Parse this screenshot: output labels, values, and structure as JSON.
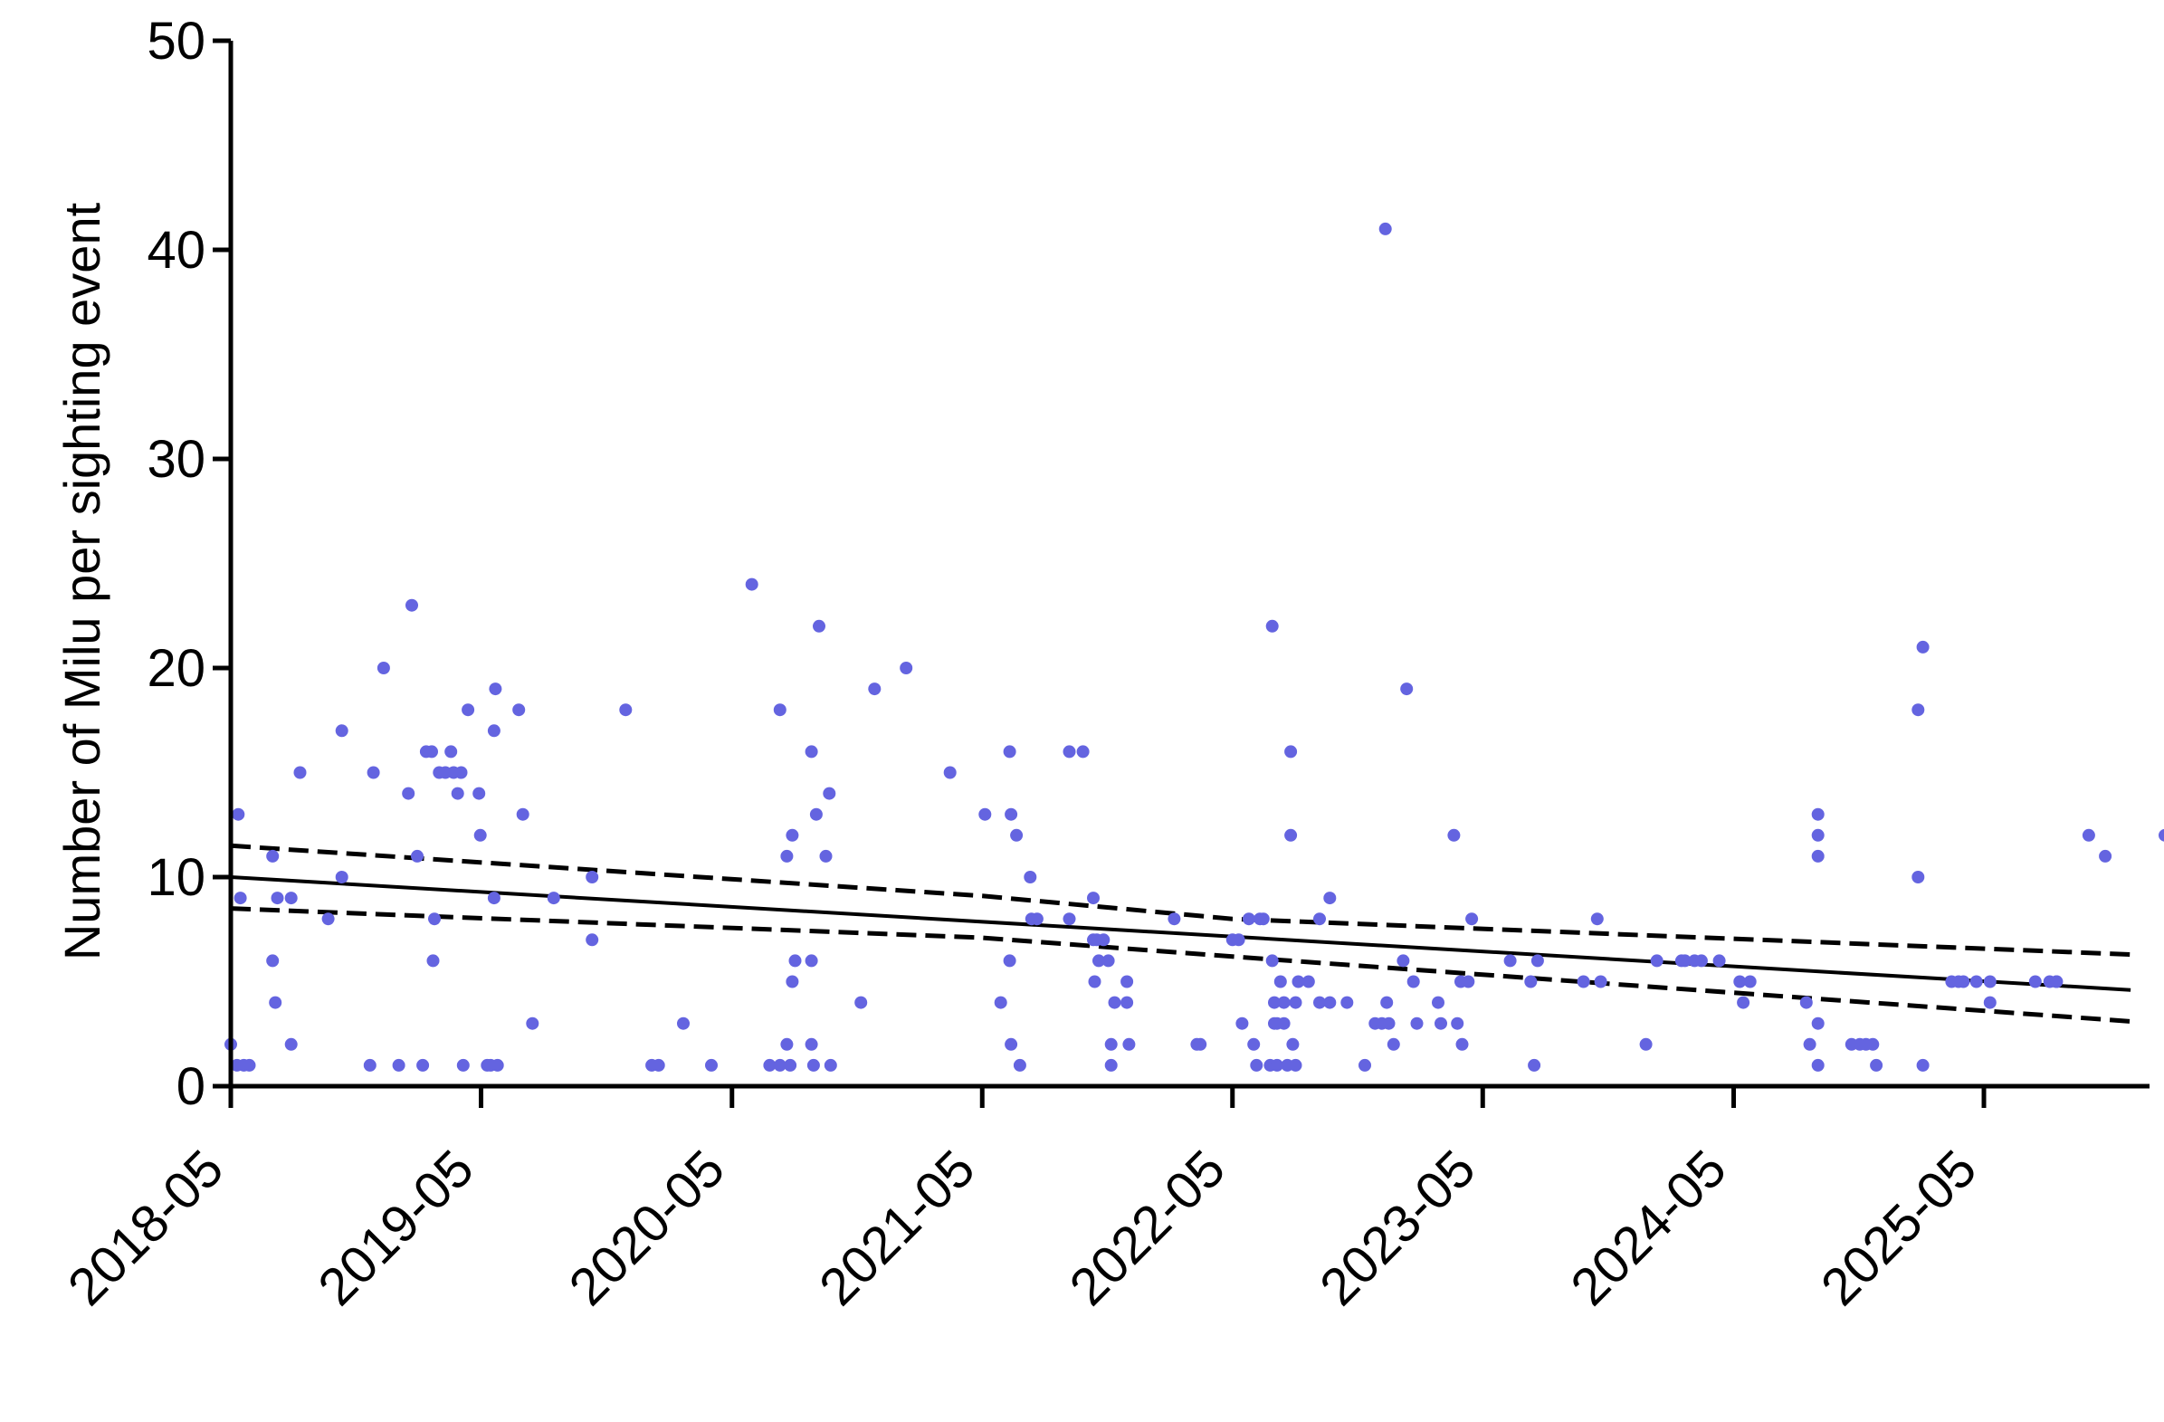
{
  "chart_data": {
    "type": "scatter",
    "ylabel": "Number of Milu per sighting event",
    "xlabel": "",
    "ylim": [
      0,
      50
    ],
    "yticks": [
      0,
      10,
      20,
      30,
      40,
      50
    ],
    "xlim": [
      "2018-05-01",
      "2026-03-01"
    ],
    "xticks": [
      "2018-05",
      "2019-05",
      "2020-05",
      "2021-05",
      "2022-05",
      "2023-05",
      "2024-05",
      "2025-05"
    ],
    "point_color": "#6464e0",
    "grid": false,
    "legend": "none",
    "points": [
      [
        "2018-05-01",
        2
      ],
      [
        "2018-05-12",
        13
      ],
      [
        "2018-05-15",
        9
      ],
      [
        "2018-05-10",
        1
      ],
      [
        "2018-05-20",
        1
      ],
      [
        "2018-05-28",
        1
      ],
      [
        "2018-07-01",
        11
      ],
      [
        "2018-07-01",
        6
      ],
      [
        "2018-07-05",
        4
      ],
      [
        "2018-07-08",
        9
      ],
      [
        "2018-07-28",
        9
      ],
      [
        "2018-07-28",
        2
      ],
      [
        "2018-08-10",
        15
      ],
      [
        "2018-09-20",
        8
      ],
      [
        "2018-10-10",
        10
      ],
      [
        "2018-10-10",
        17
      ],
      [
        "2018-11-20",
        1
      ],
      [
        "2018-11-25",
        15
      ],
      [
        "2018-12-10",
        20
      ],
      [
        "2019-01-01",
        1
      ],
      [
        "2019-01-15",
        14
      ],
      [
        "2019-01-20",
        23
      ],
      [
        "2019-01-28",
        11
      ],
      [
        "2019-02-05",
        1
      ],
      [
        "2019-02-10",
        16
      ],
      [
        "2019-02-18",
        16
      ],
      [
        "2019-02-20",
        6
      ],
      [
        "2019-02-22",
        8
      ],
      [
        "2019-03-01",
        15
      ],
      [
        "2019-03-10",
        15
      ],
      [
        "2019-03-18",
        16
      ],
      [
        "2019-03-22",
        15
      ],
      [
        "2019-03-28",
        14
      ],
      [
        "2019-04-02",
        15
      ],
      [
        "2019-04-05",
        1
      ],
      [
        "2019-04-12",
        18
      ],
      [
        "2019-04-28",
        14
      ],
      [
        "2019-04-30",
        12
      ],
      [
        "2019-05-10",
        1
      ],
      [
        "2019-05-15",
        1
      ],
      [
        "2019-05-20",
        9
      ],
      [
        "2019-05-20",
        17
      ],
      [
        "2019-05-22",
        19
      ],
      [
        "2019-05-25",
        1
      ],
      [
        "2019-06-25",
        18
      ],
      [
        "2019-07-01",
        13
      ],
      [
        "2019-07-15",
        3
      ],
      [
        "2019-08-15",
        9
      ],
      [
        "2019-10-10",
        10
      ],
      [
        "2019-10-10",
        7
      ],
      [
        "2019-11-28",
        18
      ],
      [
        "2020-01-05",
        1
      ],
      [
        "2020-01-15",
        1
      ],
      [
        "2020-02-20",
        3
      ],
      [
        "2020-04-01",
        1
      ],
      [
        "2020-05-30",
        24
      ],
      [
        "2020-06-25",
        1
      ],
      [
        "2020-07-10",
        1
      ],
      [
        "2020-07-10",
        18
      ],
      [
        "2020-07-20",
        2
      ],
      [
        "2020-07-20",
        11
      ],
      [
        "2020-07-25",
        1
      ],
      [
        "2020-07-28",
        5
      ],
      [
        "2020-07-28",
        12
      ],
      [
        "2020-08-01",
        6
      ],
      [
        "2020-08-25",
        16
      ],
      [
        "2020-08-25",
        6
      ],
      [
        "2020-08-25",
        2
      ],
      [
        "2020-08-28",
        1
      ],
      [
        "2020-09-01",
        13
      ],
      [
        "2020-09-05",
        22
      ],
      [
        "2020-09-15",
        11
      ],
      [
        "2020-09-20",
        14
      ],
      [
        "2020-09-22",
        1
      ],
      [
        "2020-11-05",
        4
      ],
      [
        "2020-11-25",
        19
      ],
      [
        "2021-01-10",
        20
      ],
      [
        "2021-03-15",
        15
      ],
      [
        "2021-05-05",
        13
      ],
      [
        "2021-05-28",
        4
      ],
      [
        "2021-06-10",
        16
      ],
      [
        "2021-06-10",
        6
      ],
      [
        "2021-06-12",
        13
      ],
      [
        "2021-06-12",
        2
      ],
      [
        "2021-06-20",
        12
      ],
      [
        "2021-06-25",
        1
      ],
      [
        "2021-07-10",
        10
      ],
      [
        "2021-07-12",
        8
      ],
      [
        "2021-07-20",
        8
      ],
      [
        "2021-09-05",
        16
      ],
      [
        "2021-09-05",
        8
      ],
      [
        "2021-09-25",
        16
      ],
      [
        "2021-10-10",
        9
      ],
      [
        "2021-10-10",
        7
      ],
      [
        "2021-10-12",
        5
      ],
      [
        "2021-10-15",
        7
      ],
      [
        "2021-10-18",
        6
      ],
      [
        "2021-10-25",
        7
      ],
      [
        "2021-11-01",
        6
      ],
      [
        "2021-11-05",
        2
      ],
      [
        "2021-11-05",
        1
      ],
      [
        "2021-11-10",
        4
      ],
      [
        "2021-11-28",
        5
      ],
      [
        "2021-11-28",
        4
      ],
      [
        "2021-12-01",
        2
      ],
      [
        "2022-02-05",
        8
      ],
      [
        "2022-03-10",
        2
      ],
      [
        "2022-03-15",
        2
      ],
      [
        "2022-05-01",
        7
      ],
      [
        "2022-05-10",
        7
      ],
      [
        "2022-05-15",
        3
      ],
      [
        "2022-05-25",
        8
      ],
      [
        "2022-06-01",
        2
      ],
      [
        "2022-06-05",
        1
      ],
      [
        "2022-06-10",
        8
      ],
      [
        "2022-06-15",
        8
      ],
      [
        "2022-06-25",
        1
      ],
      [
        "2022-06-28",
        22
      ],
      [
        "2022-06-28",
        6
      ],
      [
        "2022-07-01",
        4
      ],
      [
        "2022-07-01",
        3
      ],
      [
        "2022-07-05",
        1
      ],
      [
        "2022-07-05",
        3
      ],
      [
        "2022-07-10",
        5
      ],
      [
        "2022-07-15",
        4
      ],
      [
        "2022-07-15",
        3
      ],
      [
        "2022-07-20",
        1
      ],
      [
        "2022-07-25",
        16
      ],
      [
        "2022-07-25",
        12
      ],
      [
        "2022-07-28",
        2
      ],
      [
        "2022-08-01",
        4
      ],
      [
        "2022-08-01",
        1
      ],
      [
        "2022-08-05",
        5
      ],
      [
        "2022-08-20",
        5
      ],
      [
        "2022-09-05",
        8
      ],
      [
        "2022-09-05",
        4
      ],
      [
        "2022-09-20",
        9
      ],
      [
        "2022-09-20",
        4
      ],
      [
        "2022-10-15",
        4
      ],
      [
        "2022-11-10",
        1
      ],
      [
        "2022-11-25",
        3
      ],
      [
        "2022-12-05",
        3
      ],
      [
        "2022-12-10",
        41
      ],
      [
        "2022-12-12",
        4
      ],
      [
        "2022-12-15",
        3
      ],
      [
        "2022-12-22",
        2
      ],
      [
        "2023-01-05",
        6
      ],
      [
        "2023-01-10",
        19
      ],
      [
        "2023-01-20",
        5
      ],
      [
        "2023-01-25",
        3
      ],
      [
        "2023-02-25",
        4
      ],
      [
        "2023-03-01",
        3
      ],
      [
        "2023-03-20",
        12
      ],
      [
        "2023-03-25",
        3
      ],
      [
        "2023-03-30",
        5
      ],
      [
        "2023-04-01",
        2
      ],
      [
        "2023-04-10",
        5
      ],
      [
        "2023-04-15",
        8
      ],
      [
        "2023-06-10",
        6
      ],
      [
        "2023-07-10",
        5
      ],
      [
        "2023-07-15",
        1
      ],
      [
        "2023-07-20",
        6
      ],
      [
        "2023-09-25",
        5
      ],
      [
        "2023-10-15",
        8
      ],
      [
        "2023-10-20",
        5
      ],
      [
        "2023-12-25",
        2
      ],
      [
        "2024-01-10",
        6
      ],
      [
        "2024-02-15",
        6
      ],
      [
        "2024-02-20",
        6
      ],
      [
        "2024-03-05",
        6
      ],
      [
        "2024-03-15",
        6
      ],
      [
        "2024-04-10",
        6
      ],
      [
        "2024-05-10",
        5
      ],
      [
        "2024-05-15",
        4
      ],
      [
        "2024-05-25",
        5
      ],
      [
        "2024-08-15",
        4
      ],
      [
        "2024-08-20",
        2
      ],
      [
        "2024-09-01",
        13
      ],
      [
        "2024-09-01",
        12
      ],
      [
        "2024-09-01",
        11
      ],
      [
        "2024-09-01",
        3
      ],
      [
        "2024-09-01",
        1
      ],
      [
        "2024-10-20",
        2
      ],
      [
        "2024-11-01",
        2
      ],
      [
        "2024-11-10",
        2
      ],
      [
        "2024-11-20",
        2
      ],
      [
        "2024-11-25",
        1
      ],
      [
        "2025-01-25",
        18
      ],
      [
        "2025-01-25",
        10
      ],
      [
        "2025-02-01",
        21
      ],
      [
        "2025-02-01",
        1
      ],
      [
        "2025-03-15",
        5
      ],
      [
        "2025-03-25",
        5
      ],
      [
        "2025-04-01",
        5
      ],
      [
        "2025-04-20",
        5
      ],
      [
        "2025-05-10",
        5
      ],
      [
        "2025-05-10",
        4
      ],
      [
        "2025-07-15",
        5
      ],
      [
        "2025-08-05",
        5
      ],
      [
        "2025-08-15",
        5
      ],
      [
        "2025-08-15",
        5
      ],
      [
        "2025-10-01",
        12
      ],
      [
        "2025-10-25",
        11
      ],
      [
        "2026-01-20",
        12
      ]
    ],
    "fit_line": {
      "style": "solid",
      "points": [
        [
          "2018-05-01",
          10.0
        ],
        [
          "2025-12-01",
          4.6
        ]
      ]
    },
    "ci_upper": {
      "style": "dashed",
      "points": [
        [
          "2018-05-01",
          11.5
        ],
        [
          "2021-05-01",
          9.1
        ],
        [
          "2022-05-01",
          8.0
        ],
        [
          "2025-12-01",
          6.3
        ]
      ]
    },
    "ci_lower": {
      "style": "dashed",
      "points": [
        [
          "2018-05-01",
          8.5
        ],
        [
          "2021-05-01",
          7.1
        ],
        [
          "2022-05-01",
          6.2
        ],
        [
          "2025-12-01",
          3.1
        ]
      ]
    }
  }
}
